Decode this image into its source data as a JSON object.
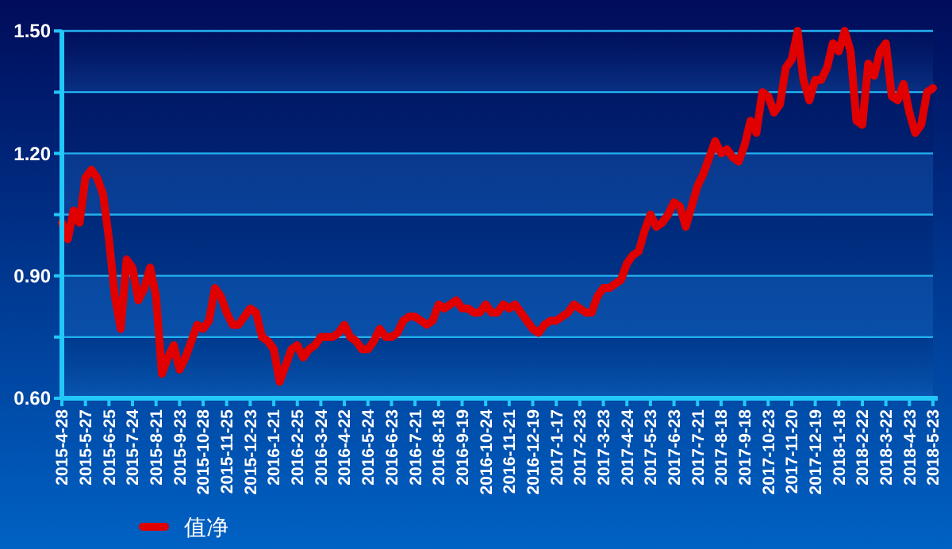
{
  "chart_data": {
    "type": "line",
    "categories": [
      "2015-4-28",
      null,
      null,
      null,
      "2015-5-27",
      null,
      null,
      null,
      "2015-6-25",
      null,
      null,
      null,
      "2015-7-24",
      null,
      null,
      null,
      "2015-8-21",
      null,
      null,
      null,
      "2015-9-23",
      null,
      null,
      null,
      "2015-10-28",
      null,
      null,
      null,
      "2015-11-25",
      null,
      null,
      null,
      "2015-12-23",
      null,
      null,
      null,
      "2016-1-21",
      null,
      null,
      null,
      "2016-2-25",
      null,
      null,
      null,
      "2016-3-24",
      null,
      null,
      null,
      "2016-4-22",
      null,
      null,
      null,
      "2016-5-24",
      null,
      null,
      null,
      "2016-6-23",
      null,
      null,
      null,
      "2016-7-21",
      null,
      null,
      null,
      "2016-8-18",
      null,
      null,
      null,
      "2016-9-19",
      null,
      null,
      null,
      "2016-10-24",
      null,
      null,
      null,
      "2016-11-21",
      null,
      null,
      null,
      "2016-12-19",
      null,
      null,
      null,
      "2017-1-17",
      null,
      null,
      null,
      "2017-2-23",
      null,
      null,
      null,
      "2017-3-23",
      null,
      null,
      null,
      "2017-4-24",
      null,
      null,
      null,
      "2017-5-23",
      null,
      null,
      null,
      "2017-6-23",
      null,
      null,
      null,
      "2017-7-21",
      null,
      null,
      null,
      "2017-8-18",
      null,
      null,
      null,
      "2017-9-18",
      null,
      null,
      null,
      "2017-10-23",
      null,
      null,
      null,
      "2017-11-20",
      null,
      null,
      null,
      "2017-12-19",
      null,
      null,
      null,
      "2018-1-18",
      null,
      null,
      null,
      "2018-2-22",
      null,
      null,
      null,
      "2018-3-22",
      null,
      null,
      null,
      "2018-4-23",
      null,
      null,
      null,
      "2018-5-23"
    ],
    "series": [
      {
        "name": "值净",
        "color": "#e00000",
        "values": [
          1.03,
          0.99,
          1.06,
          1.03,
          1.14,
          1.16,
          1.14,
          1.1,
          0.99,
          0.85,
          0.77,
          0.94,
          0.92,
          0.84,
          0.87,
          0.92,
          0.85,
          0.66,
          0.7,
          0.73,
          0.67,
          0.7,
          0.74,
          0.78,
          0.77,
          0.79,
          0.87,
          0.85,
          0.81,
          0.78,
          0.78,
          0.8,
          0.82,
          0.81,
          0.75,
          0.74,
          0.72,
          0.64,
          0.68,
          0.72,
          0.73,
          0.7,
          0.72,
          0.73,
          0.75,
          0.75,
          0.75,
          0.76,
          0.78,
          0.75,
          0.74,
          0.72,
          0.72,
          0.74,
          0.77,
          0.75,
          0.75,
          0.76,
          0.79,
          0.8,
          0.8,
          0.79,
          0.78,
          0.79,
          0.83,
          0.82,
          0.83,
          0.84,
          0.82,
          0.82,
          0.81,
          0.81,
          0.83,
          0.81,
          0.81,
          0.83,
          0.82,
          0.83,
          0.81,
          0.79,
          0.77,
          0.76,
          0.78,
          0.79,
          0.79,
          0.8,
          0.81,
          0.83,
          0.82,
          0.81,
          0.81,
          0.85,
          0.87,
          0.87,
          0.88,
          0.89,
          0.93,
          0.95,
          0.96,
          1.01,
          1.05,
          1.02,
          1.03,
          1.05,
          1.08,
          1.07,
          1.02,
          1.07,
          1.12,
          1.15,
          1.19,
          1.23,
          1.2,
          1.21,
          1.19,
          1.18,
          1.22,
          1.28,
          1.25,
          1.35,
          1.34,
          1.3,
          1.32,
          1.41,
          1.43,
          1.5,
          1.38,
          1.33,
          1.38,
          1.38,
          1.41,
          1.47,
          1.45,
          1.5,
          1.45,
          1.28,
          1.27,
          1.42,
          1.39,
          1.45,
          1.47,
          1.34,
          1.33,
          1.37,
          1.3,
          1.25,
          1.27,
          1.35,
          1.36
        ]
      }
    ],
    "ylim": [
      0.6,
      1.5
    ],
    "yticks": [
      {
        "value": 0.6,
        "label": "0.60"
      },
      {
        "value": 0.75,
        "label": null
      },
      {
        "value": 0.9,
        "label": "0.90"
      },
      {
        "value": 1.05,
        "label": null
      },
      {
        "value": 1.2,
        "label": "1.20"
      },
      {
        "value": 1.35,
        "label": null
      },
      {
        "value": 1.5,
        "label": "1.50"
      }
    ],
    "grid": "y",
    "legend": "bottom left",
    "marker": "none",
    "line_style": "solid"
  }
}
